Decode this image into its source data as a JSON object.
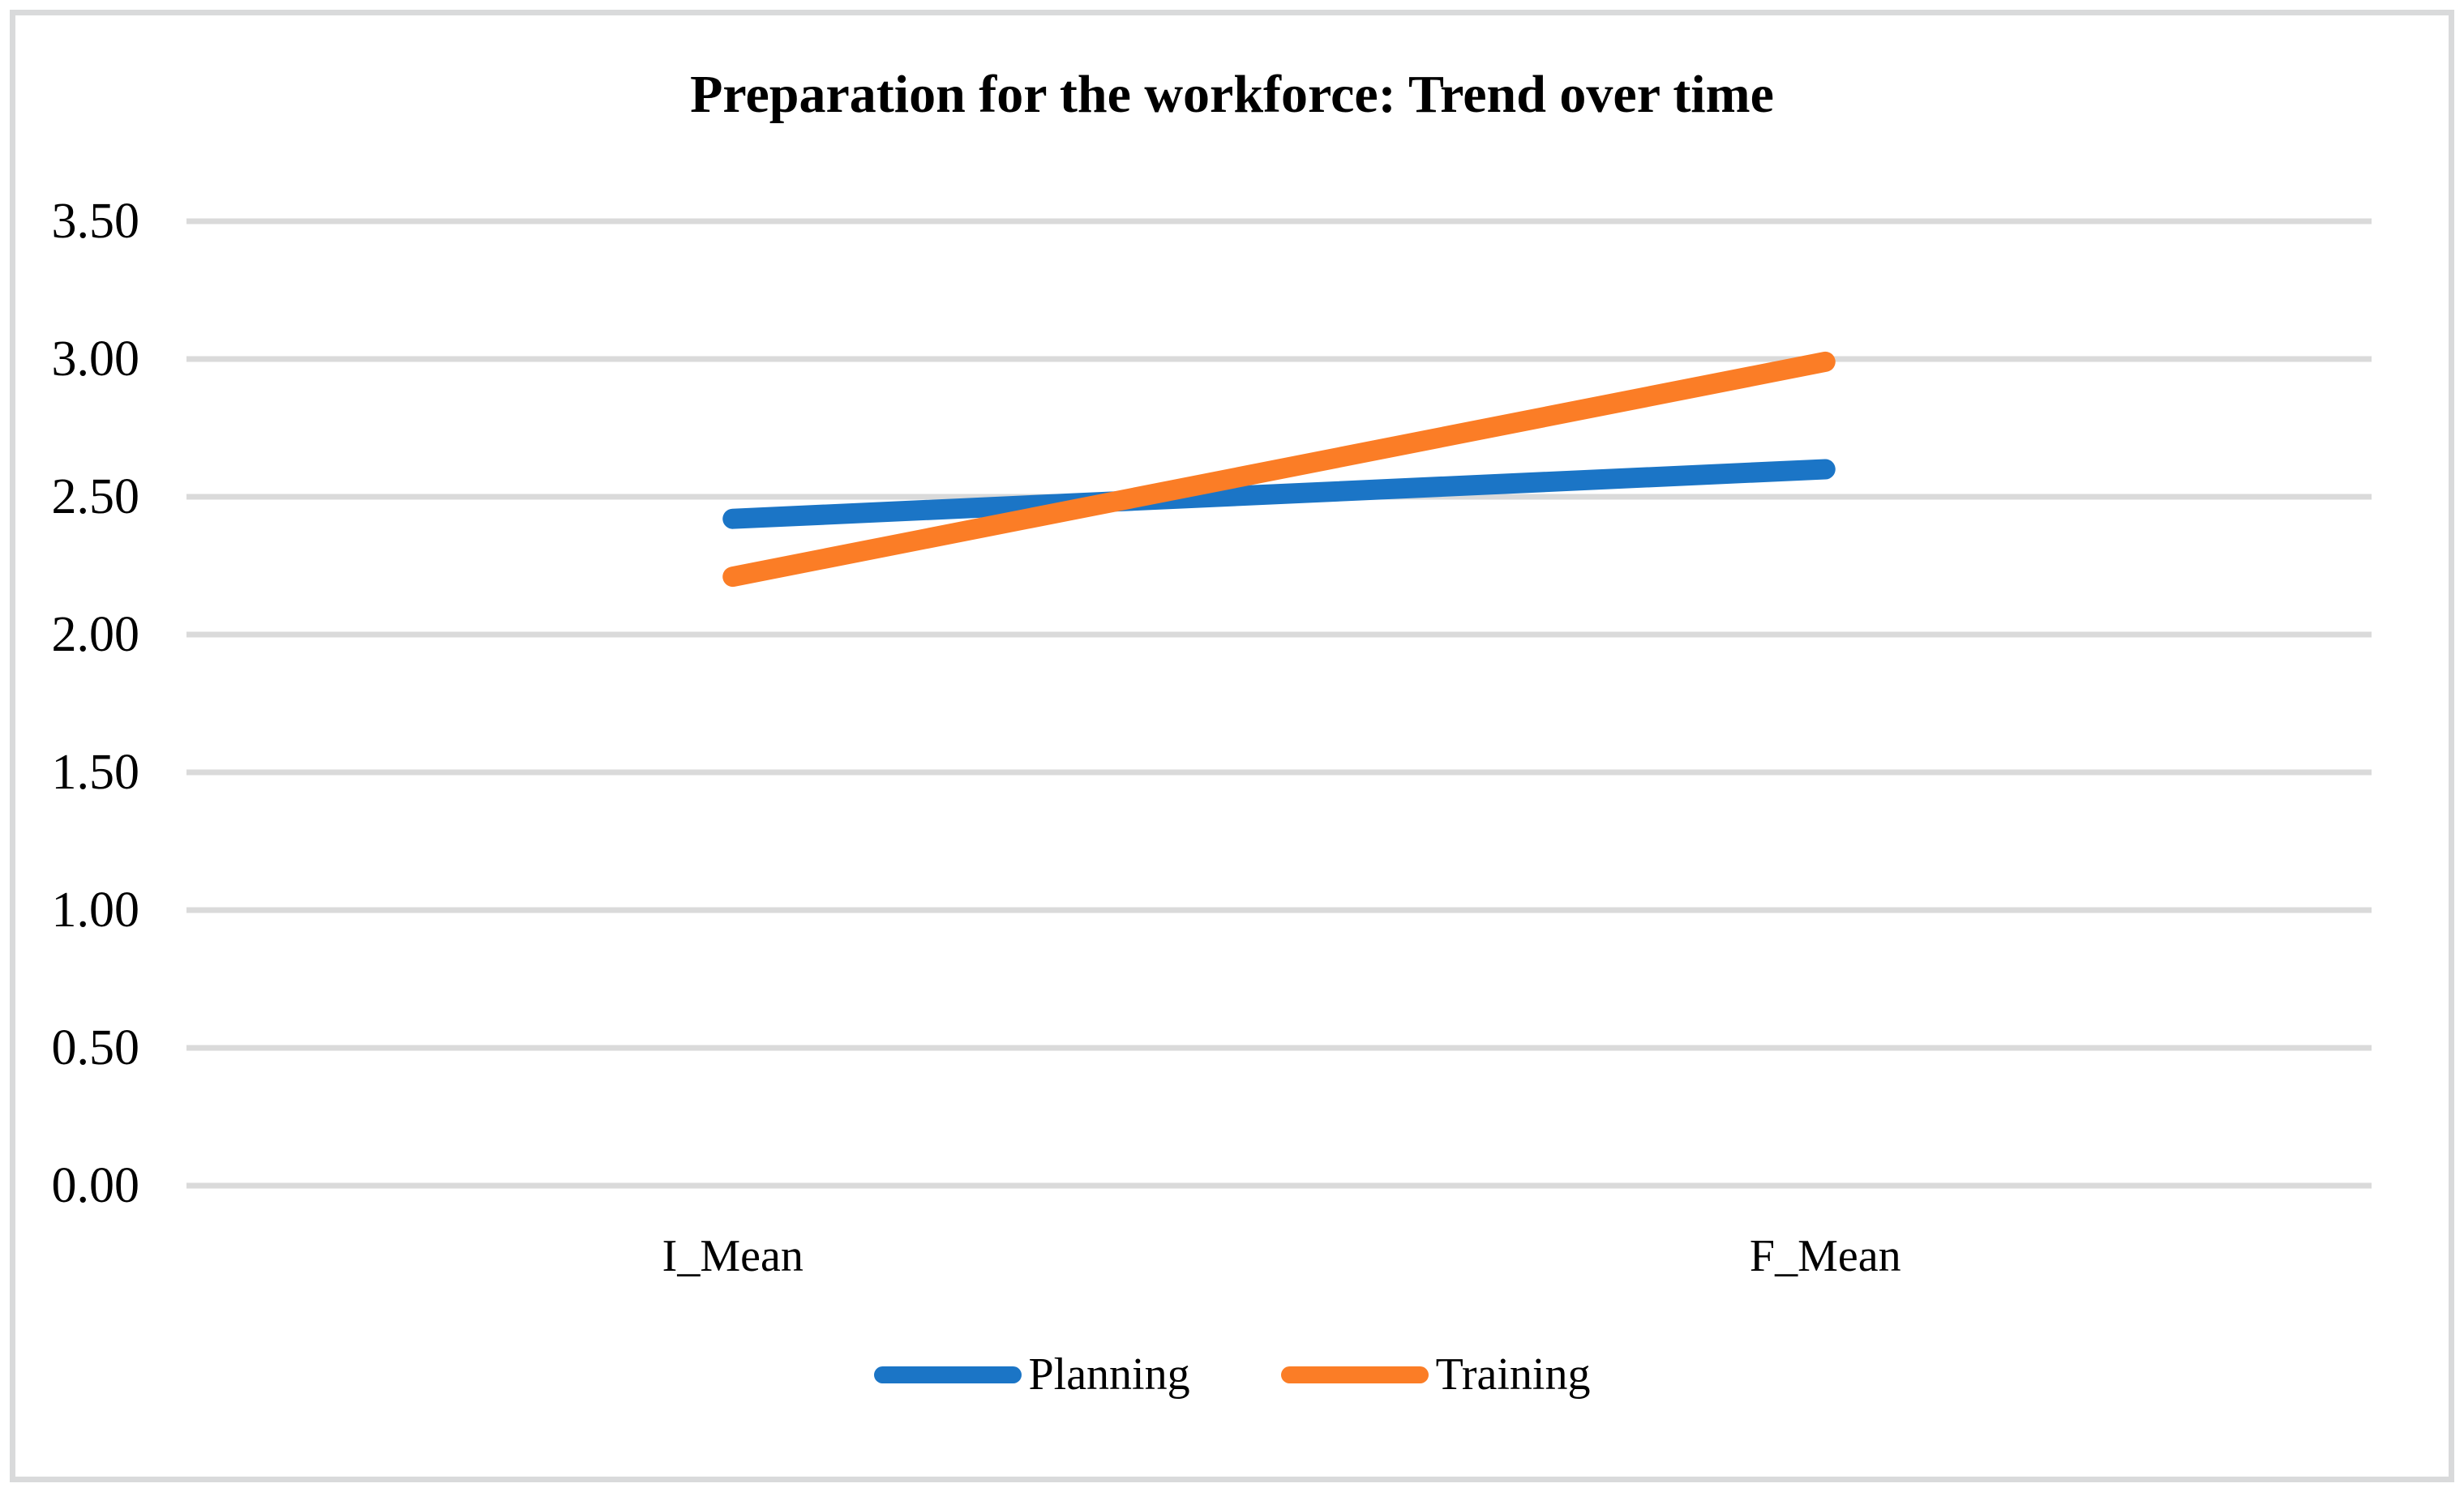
{
  "figure": {
    "background_color": "#ffffff",
    "border_color": "#d9dadb"
  },
  "chart_data": {
    "type": "line",
    "title": "Preparation for the workforce: Trend over time",
    "categories": [
      "I_Mean",
      "F_Mean"
    ],
    "series": [
      {
        "name": "Planning",
        "color": "#1b75c6",
        "values": [
          2.42,
          2.6
        ]
      },
      {
        "name": "Training",
        "color": "#fb7d26",
        "values": [
          2.21,
          2.99
        ]
      }
    ],
    "xlabel": "",
    "ylabel": "",
    "ylim": [
      0.0,
      3.5
    ],
    "ytick_step": 0.5,
    "ytick_labels": [
      "0.00",
      "0.50",
      "1.00",
      "1.50",
      "2.00",
      "2.50",
      "3.00",
      "3.50"
    ],
    "grid": "horizontal",
    "gridline_color": "#dadada",
    "legend_position": "bottom"
  }
}
